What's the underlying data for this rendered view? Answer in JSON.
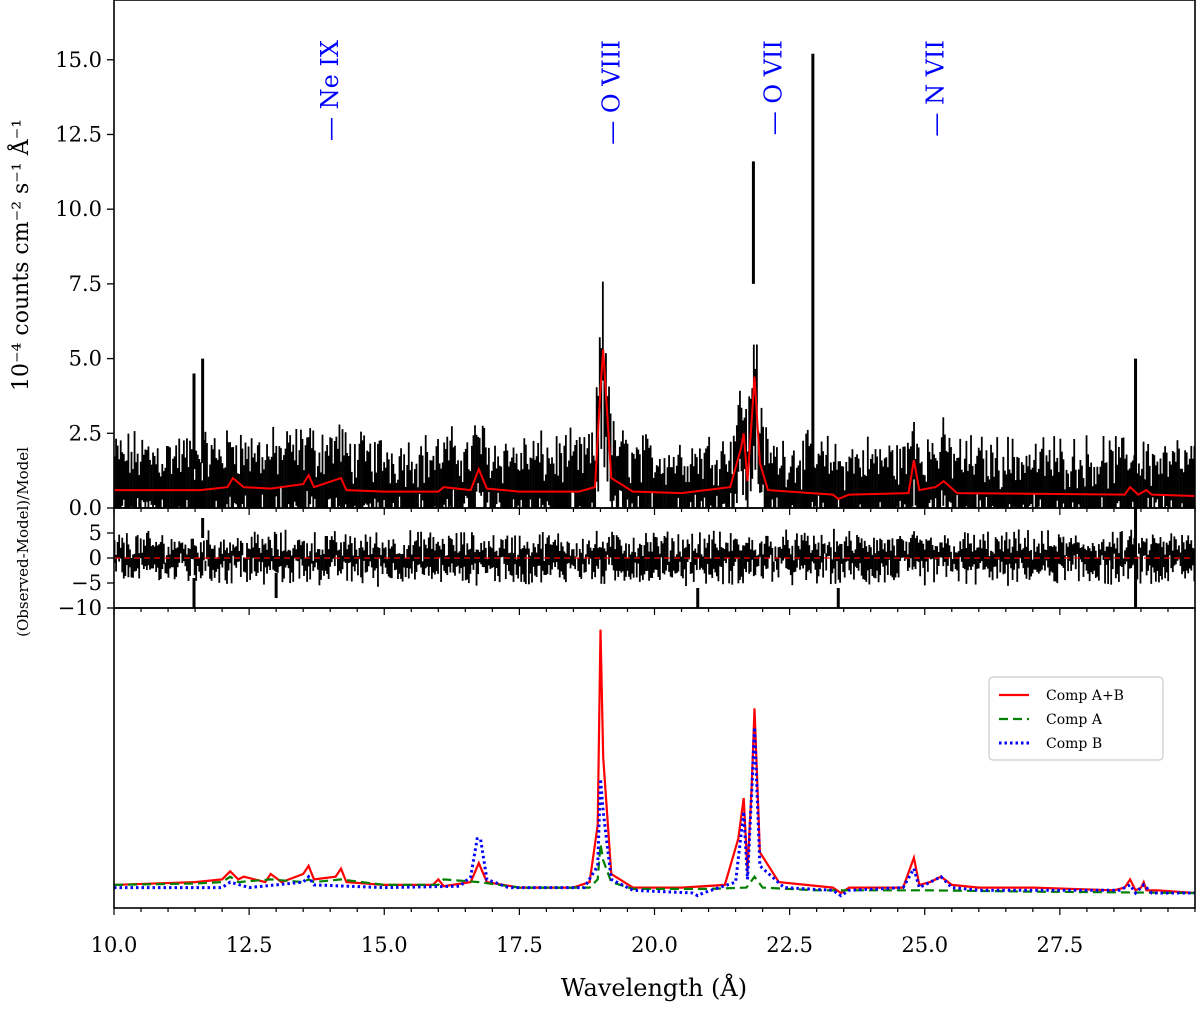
{
  "chart_data": [
    {
      "panel": "spectrum",
      "type": "line",
      "ylabel": "10⁻⁴ counts cm⁻² s⁻¹ Å⁻¹",
      "xlim": [
        10.0,
        30.0
      ],
      "ylim": [
        0.0,
        17.0
      ],
      "yticks": [
        "0.0",
        "2.5",
        "5.0",
        "7.5",
        "10.0",
        "12.5",
        "15.0"
      ],
      "line_ids": [
        {
          "label": "Ne IX",
          "x": 14.0
        },
        {
          "label": "O VIII",
          "x": 19.2
        },
        {
          "label": "O VII",
          "x": 22.2
        },
        {
          "label": "N VII",
          "x": 25.2
        }
      ],
      "data_color": "#000000",
      "model_color": "#ff0000",
      "model": {
        "x": [
          10.0,
          11.0,
          11.6,
          12.1,
          12.2,
          12.4,
          12.9,
          13.5,
          13.6,
          13.7,
          14.2,
          14.3,
          15.0,
          16.0,
          16.1,
          16.6,
          16.75,
          16.9,
          17.5,
          18.6,
          18.9,
          19.0,
          19.05,
          19.2,
          19.6,
          20.5,
          21.4,
          21.6,
          21.65,
          21.72,
          21.8,
          21.85,
          21.95,
          22.1,
          23.3,
          23.4,
          23.6,
          24.7,
          24.8,
          24.9,
          25.2,
          25.35,
          25.6,
          28.7,
          28.8,
          28.95,
          29.1,
          29.2,
          30.0
        ],
        "y": [
          0.6,
          0.6,
          0.6,
          0.7,
          1.0,
          0.7,
          0.65,
          0.8,
          1.1,
          0.7,
          1.0,
          0.6,
          0.55,
          0.55,
          0.7,
          0.6,
          1.3,
          0.65,
          0.55,
          0.55,
          0.7,
          4.0,
          5.3,
          1.0,
          0.55,
          0.5,
          0.7,
          2.0,
          2.5,
          0.9,
          3.0,
          4.4,
          1.5,
          0.6,
          0.45,
          0.3,
          0.45,
          0.5,
          1.6,
          0.6,
          0.7,
          0.9,
          0.5,
          0.45,
          0.7,
          0.45,
          0.6,
          0.45,
          0.4
        ]
      }
    },
    {
      "panel": "residuals",
      "type": "scatter",
      "ylabel": "(Observed-Model)/Model",
      "xlim": [
        10.0,
        30.0
      ],
      "ylim": [
        -10,
        10
      ],
      "yticks": [
        "−10",
        "−5",
        "0",
        "5"
      ],
      "zero_line_color": "#ff0000"
    },
    {
      "panel": "components",
      "type": "line",
      "xlabel": "Wavelength (Å)",
      "xlim": [
        10.0,
        30.0
      ],
      "xticks": [
        "10.0",
        "12.5",
        "15.0",
        "17.5",
        "20.0",
        "22.5",
        "25.0",
        "27.5"
      ],
      "ylim": [
        0,
        1.05
      ],
      "legend_placement": "upper-right",
      "series": [
        {
          "name": "Comp A+B",
          "color": "#ff0000",
          "style": "solid",
          "x": [
            10.0,
            11.5,
            12.0,
            12.15,
            12.3,
            12.4,
            12.8,
            12.9,
            13.1,
            13.5,
            13.6,
            13.7,
            14.1,
            14.2,
            14.3,
            15.0,
            15.9,
            16.0,
            16.1,
            16.6,
            16.75,
            16.9,
            17.5,
            18.5,
            18.8,
            18.95,
            19.0,
            19.05,
            19.2,
            19.6,
            20.5,
            21.3,
            21.55,
            21.65,
            21.72,
            21.8,
            21.85,
            21.95,
            22.3,
            23.3,
            23.45,
            23.6,
            24.6,
            24.8,
            24.9,
            25.1,
            25.3,
            25.5,
            26.0,
            27.0,
            28.5,
            28.7,
            28.8,
            28.9,
            29.0,
            29.05,
            29.1,
            29.3,
            30.0
          ],
          "y": [
            0.03,
            0.04,
            0.05,
            0.08,
            0.05,
            0.06,
            0.04,
            0.07,
            0.04,
            0.07,
            0.1,
            0.05,
            0.06,
            0.09,
            0.04,
            0.03,
            0.03,
            0.05,
            0.025,
            0.04,
            0.11,
            0.04,
            0.02,
            0.02,
            0.04,
            0.25,
            0.97,
            0.5,
            0.07,
            0.02,
            0.02,
            0.03,
            0.2,
            0.35,
            0.08,
            0.4,
            0.68,
            0.15,
            0.04,
            0.02,
            0.0,
            0.02,
            0.02,
            0.13,
            0.03,
            0.04,
            0.06,
            0.03,
            0.02,
            0.02,
            0.01,
            0.02,
            0.05,
            0.01,
            0.02,
            0.04,
            0.01,
            0.01,
            0.0
          ]
        },
        {
          "name": "Comp A",
          "color": "#008000",
          "style": "dashed",
          "x": [
            10.0,
            11.5,
            12.0,
            12.15,
            12.3,
            12.9,
            13.5,
            13.6,
            13.7,
            14.2,
            15.0,
            16.0,
            16.1,
            16.75,
            17.5,
            18.8,
            18.95,
            19.0,
            19.05,
            19.2,
            19.6,
            21.0,
            21.7,
            21.85,
            22.0,
            23.0,
            25.0,
            27.0,
            30.0
          ],
          "y": [
            0.03,
            0.035,
            0.04,
            0.06,
            0.04,
            0.05,
            0.04,
            0.05,
            0.04,
            0.05,
            0.03,
            0.03,
            0.05,
            0.04,
            0.02,
            0.02,
            0.05,
            0.18,
            0.12,
            0.04,
            0.015,
            0.015,
            0.02,
            0.06,
            0.02,
            0.01,
            0.01,
            0.005,
            0.0
          ]
        },
        {
          "name": "Comp B",
          "color": "#0000ff",
          "style": "dotted",
          "x": [
            10.0,
            11.0,
            12.0,
            12.15,
            12.5,
            13.5,
            13.6,
            13.7,
            15.0,
            16.4,
            16.6,
            16.72,
            16.78,
            16.9,
            17.3,
            18.7,
            18.95,
            19.0,
            19.05,
            19.2,
            19.6,
            20.7,
            20.8,
            20.9,
            21.5,
            21.65,
            21.72,
            21.8,
            21.85,
            21.95,
            22.4,
            23.3,
            23.45,
            23.6,
            24.6,
            24.8,
            24.9,
            25.3,
            25.5,
            26.0,
            28.6,
            28.8,
            28.9,
            29.05,
            29.2,
            30.0
          ],
          "y": [
            0.02,
            0.02,
            0.02,
            0.04,
            0.02,
            0.04,
            0.06,
            0.03,
            0.02,
            0.025,
            0.06,
            0.2,
            0.2,
            0.05,
            0.02,
            0.02,
            0.1,
            0.42,
            0.3,
            0.05,
            0.01,
            0.0,
            -0.01,
            0.0,
            0.04,
            0.3,
            0.05,
            0.38,
            0.61,
            0.1,
            0.02,
            0.01,
            -0.01,
            0.01,
            0.02,
            0.09,
            0.02,
            0.06,
            0.02,
            0.01,
            0.01,
            0.03,
            0.0,
            0.03,
            0.0,
            0.0
          ]
        }
      ]
    }
  ]
}
